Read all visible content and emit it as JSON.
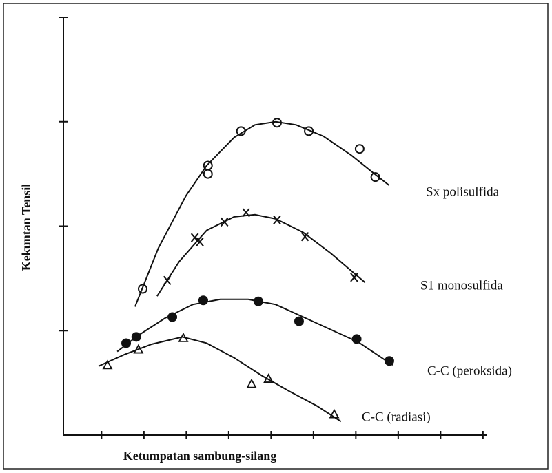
{
  "chart_data": {
    "type": "scatter",
    "x_label": "Ketumpatan sambung-silang",
    "y_label": "Kekuntan Tensil",
    "xlim": [
      0.1,
      10.1
    ],
    "ylim": [
      0,
      4
    ],
    "xticks": [
      1,
      2,
      3,
      4,
      5,
      6,
      7,
      8,
      9,
      10
    ],
    "yticks": [
      1,
      2,
      3,
      4
    ],
    "series": [
      {
        "name": "Sx polisulfida",
        "marker": "circle",
        "color": "#111111",
        "x": [
          1.97,
          3.51,
          3.51,
          4.29,
          5.14,
          5.89,
          7.09,
          7.46
        ],
        "values": [
          1.4,
          2.58,
          2.5,
          2.91,
          2.99,
          2.91,
          2.74,
          2.47
        ],
        "curve_x": [
          1.79,
          2.34,
          2.99,
          3.48,
          4.13,
          4.62,
          5.11,
          5.59,
          6.24,
          6.89,
          7.38,
          7.79
        ],
        "curve_y": [
          1.23,
          1.79,
          2.29,
          2.58,
          2.85,
          2.97,
          3.0,
          2.97,
          2.86,
          2.68,
          2.52,
          2.39
        ]
      },
      {
        "name": "S1 monosulfida",
        "marker": "cross",
        "color": "#111111",
        "x": [
          2.55,
          3.2,
          3.32,
          3.9,
          4.41,
          5.14,
          5.8,
          6.96
        ],
        "values": [
          1.48,
          1.89,
          1.85,
          2.04,
          2.13,
          2.06,
          1.9,
          1.51
        ],
        "curve_x": [
          2.31,
          2.83,
          3.48,
          4.13,
          4.62,
          5.11,
          5.76,
          6.41,
          7.22
        ],
        "curve_y": [
          1.33,
          1.66,
          1.96,
          2.09,
          2.11,
          2.07,
          1.94,
          1.74,
          1.46
        ]
      },
      {
        "name": "C-C (peroksida)",
        "marker": "disc",
        "color": "#111111",
        "x": [
          1.58,
          1.82,
          2.67,
          3.4,
          4.7,
          5.66,
          7.02,
          7.79
        ],
        "values": [
          0.88,
          0.94,
          1.13,
          1.29,
          1.28,
          1.09,
          0.92,
          0.71
        ],
        "curve_x": [
          1.37,
          1.85,
          2.5,
          3.15,
          3.8,
          4.46,
          5.11,
          5.76,
          6.41,
          7.06,
          7.87
        ],
        "curve_y": [
          0.8,
          0.95,
          1.12,
          1.25,
          1.3,
          1.3,
          1.25,
          1.13,
          1.01,
          0.89,
          0.67
        ]
      },
      {
        "name": "C-C (radiasi)",
        "marker": "triangle",
        "color": "#111111",
        "x": [
          1.14,
          1.87,
          2.93,
          4.54,
          4.94,
          6.49
        ],
        "values": [
          0.67,
          0.82,
          0.93,
          0.49,
          0.54,
          0.2
        ],
        "curve_x": [
          0.93,
          1.53,
          2.18,
          2.91,
          3.48,
          4.13,
          4.78,
          5.43,
          6.08,
          6.65
        ],
        "curve_y": [
          0.66,
          0.77,
          0.87,
          0.94,
          0.88,
          0.74,
          0.57,
          0.42,
          0.28,
          0.13
        ]
      }
    ]
  }
}
